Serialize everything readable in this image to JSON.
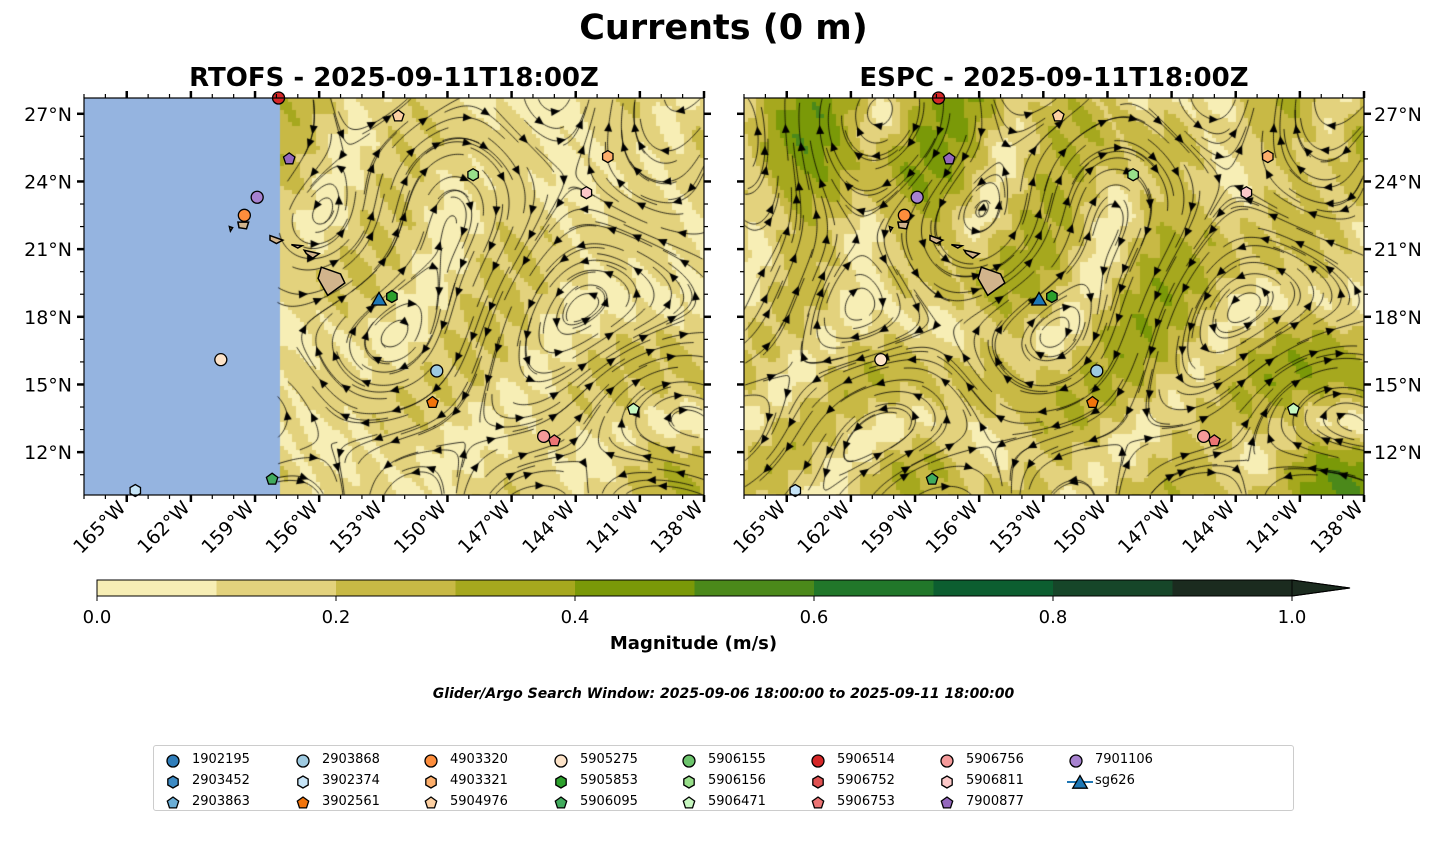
{
  "title": "Currents (0 m)",
  "panels": [
    {
      "id": "rtofs",
      "title": "RTOFS - 2025-09-11T18:00Z",
      "model_data_east_of_lon": -157.9
    },
    {
      "id": "espc",
      "title": "ESPC - 2025-09-11T18:00Z"
    }
  ],
  "colorbar": {
    "label": "Magnitude (m/s)",
    "ticks": [
      "0.0",
      "0.2",
      "0.4",
      "0.6",
      "0.8",
      "1.0"
    ],
    "colors": [
      "#f7eeb5",
      "#e3d27d",
      "#c8b945",
      "#a6a81e",
      "#7a9908",
      "#4b891a",
      "#21772a",
      "#0c5e30",
      "#164629",
      "#1b2b1f"
    ],
    "extend": "max"
  },
  "search_window": "Glider/Argo Search Window: 2025-09-06 18:00:00 to 2025-09-11 18:00:00",
  "land_color": "#d2b48c",
  "no_data_color": "#95b4e0",
  "chart_data": {
    "type": "heatmap",
    "title": "Currents (0 m)",
    "subplots": [
      "RTOFS - 2025-09-11T18:00Z",
      "ESPC - 2025-09-11T18:00Z"
    ],
    "xlabel": "",
    "ylabel": "",
    "xlim": [
      -167,
      -138
    ],
    "ylim": [
      10.1,
      27.7
    ],
    "x_ticks": [
      "165°W",
      "162°W",
      "159°W",
      "156°W",
      "153°W",
      "150°W",
      "147°W",
      "144°W",
      "141°W",
      "138°W"
    ],
    "x_tick_values": [
      -165,
      -162,
      -159,
      -156,
      -153,
      -150,
      -147,
      -144,
      -141,
      -138
    ],
    "y_ticks": [
      "27°N",
      "24°N",
      "21°N",
      "18°N",
      "15°N",
      "12°N"
    ],
    "y_tick_values": [
      27,
      24,
      21,
      18,
      15,
      12
    ],
    "value_range": [
      0,
      1.0
    ],
    "legend_placement": "bottom",
    "platforms": [
      {
        "id": "1902195",
        "marker": "circle",
        "color": "#2f7dba"
      },
      {
        "id": "2903452",
        "marker": "hexagon",
        "color": "#3d8bc4"
      },
      {
        "id": "2903863",
        "marker": "pentagon",
        "color": "#6baed6"
      },
      {
        "id": "2903868",
        "marker": "circle",
        "color": "#9ecae1",
        "lon": -150.5,
        "lat": 15.6
      },
      {
        "id": "3902374",
        "marker": "hexagon",
        "color": "#c6e4f7",
        "lon": -164.6,
        "lat": 10.3
      },
      {
        "id": "3902561",
        "marker": "pentagon",
        "color": "#f2740b",
        "lon": -150.7,
        "lat": 14.2
      },
      {
        "id": "4903320",
        "marker": "circle",
        "color": "#fd8d3c",
        "lon": -159.5,
        "lat": 22.5
      },
      {
        "id": "4903321",
        "marker": "hexagon",
        "color": "#fdae6b",
        "lon": -142.5,
        "lat": 25.1
      },
      {
        "id": "5904976",
        "marker": "pentagon",
        "color": "#fdd0a2",
        "lon": -152.3,
        "lat": 26.9
      },
      {
        "id": "5905275",
        "marker": "circle",
        "color": "#fde3c8",
        "lon": -160.6,
        "lat": 16.1
      },
      {
        "id": "5905853",
        "marker": "hexagon",
        "color": "#2ca02c",
        "lon": -152.6,
        "lat": 18.9
      },
      {
        "id": "5906095",
        "marker": "pentagon",
        "color": "#41ab5d",
        "lon": -158.2,
        "lat": 10.8
      },
      {
        "id": "5906155",
        "marker": "circle",
        "color": "#6cc46c"
      },
      {
        "id": "5906156",
        "marker": "hexagon",
        "color": "#98df8a",
        "lon": -148.8,
        "lat": 24.3
      },
      {
        "id": "5906471",
        "marker": "pentagon",
        "color": "#c7f7c0",
        "lon": -141.3,
        "lat": 13.9
      },
      {
        "id": "5906514",
        "marker": "circle",
        "color": "#d62728",
        "lon": -157.9,
        "lat": 27.7
      },
      {
        "id": "5906752",
        "marker": "hexagon",
        "color": "#e05252"
      },
      {
        "id": "5906753",
        "marker": "pentagon",
        "color": "#ec7474",
        "lon": -145.0,
        "lat": 12.5
      },
      {
        "id": "5906756",
        "marker": "circle",
        "color": "#f59a9a",
        "lon": -145.5,
        "lat": 12.7
      },
      {
        "id": "5906811",
        "marker": "hexagon",
        "color": "#fcc8c8",
        "lon": -143.5,
        "lat": 23.5
      },
      {
        "id": "7900877",
        "marker": "pentagon",
        "color": "#9467bd",
        "lon": -157.4,
        "lat": 25.0
      },
      {
        "id": "7901106",
        "marker": "circle",
        "color": "#a782d0",
        "lon": -158.9,
        "lat": 23.3
      },
      {
        "id": "sg626",
        "marker": "triangle",
        "color": "#1f77b4",
        "lon": -153.2,
        "lat": 18.8
      }
    ]
  }
}
